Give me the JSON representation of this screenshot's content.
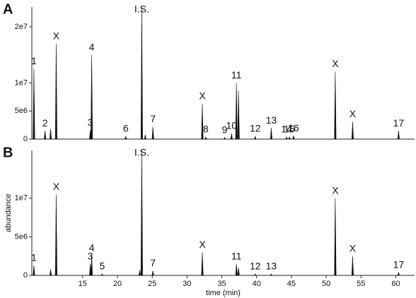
{
  "chart_data": [
    {
      "type": "spike",
      "panel": "A",
      "x": [
        8.0,
        9.6,
        10.4,
        11.2,
        16.1,
        16.3,
        21.2,
        23.5,
        24.0,
        25.1,
        32.2,
        32.7,
        35.4,
        36.4,
        37.1,
        37.4,
        39.8,
        42.1,
        44.3,
        44.7,
        45.3,
        51.3,
        53.8,
        60.4
      ],
      "values": [
        12500000,
        1500000,
        1800000,
        17000000,
        1600000,
        15000000,
        500000,
        23400000,
        800000,
        2200000,
        6300000,
        400000,
        300000,
        1000000,
        10000000,
        8600000,
        500000,
        2000000,
        400000,
        400000,
        600000,
        12000000,
        3100000,
        1500000
      ],
      "peak_labels": [
        "1",
        "2",
        null,
        "X",
        "3",
        "4",
        "6",
        "I.S.",
        null,
        "7",
        "X",
        "8",
        "9",
        "10",
        "11",
        null,
        "12",
        "13",
        "14",
        "15",
        "16",
        "X",
        "X",
        "17"
      ],
      "xlim": [
        7.7,
        62.7
      ],
      "ylim": [
        0,
        23500000
      ],
      "yticks": [
        0,
        {
          "value": 5000000,
          "label": "5e6"
        },
        {
          "value": 10000000,
          "label": "1e7"
        },
        {
          "value": 20000000,
          "label": "2e7"
        }
      ],
      "color": "#111111"
    },
    {
      "type": "spike",
      "panel": "B",
      "ylabel": "abundance",
      "xlabel": "time (min)",
      "x": [
        8.0,
        10.4,
        11.2,
        16.1,
        16.3,
        17.8,
        23.2,
        23.5,
        25.1,
        32.2,
        37.1,
        37.4,
        39.8,
        42.1,
        51.3,
        53.8,
        60.4
      ],
      "values": [
        1300000,
        800000,
        10500000,
        1500000,
        2600000,
        200000,
        700000,
        16200000,
        600000,
        3000000,
        1500000,
        1000000,
        200000,
        200000,
        10000000,
        2500000,
        400000
      ],
      "peak_labels": [
        "1",
        null,
        "X",
        "3",
        "4",
        "5",
        null,
        "I.S.",
        "7",
        "X",
        "11",
        null,
        "12",
        "13",
        "X",
        "X",
        "17"
      ],
      "xlim": [
        7.7,
        62.7
      ],
      "ylim": [
        0,
        16200000
      ],
      "xticks": [
        15,
        20,
        25,
        30,
        35,
        40,
        45,
        50,
        55,
        60
      ],
      "yticks": [
        0,
        {
          "value": 5000000,
          "label": "5e6"
        },
        {
          "value": 10000000,
          "label": "1e7"
        }
      ],
      "color": "#111111"
    }
  ]
}
